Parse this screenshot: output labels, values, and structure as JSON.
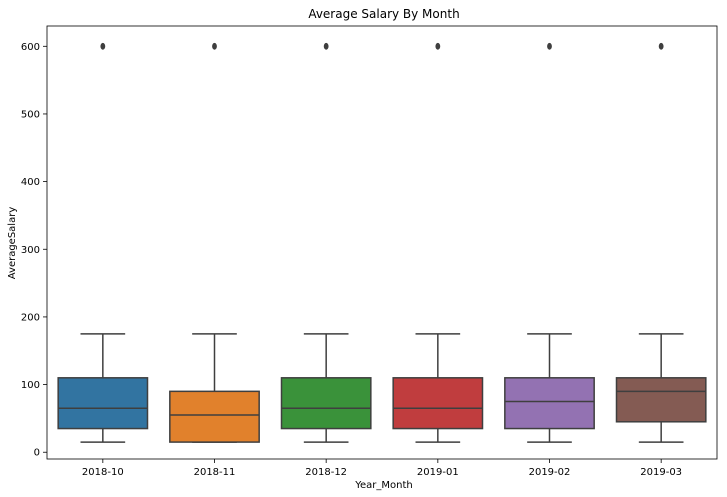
{
  "chart_data": {
    "type": "box",
    "title": "Average Salary By Month",
    "xlabel": "Year_Month",
    "ylabel": "AverageSalary",
    "ylim": [
      -10,
      630
    ],
    "yticks": [
      0,
      100,
      200,
      300,
      400,
      500,
      600
    ],
    "grid": false,
    "legend": "none",
    "categories": [
      "2018-10",
      "2018-11",
      "2018-12",
      "2019-01",
      "2019-02",
      "2019-03"
    ],
    "boxes": [
      {
        "category": "2018-10",
        "whisker_low": 15,
        "q1": 35,
        "median": 65,
        "q3": 110,
        "whisker_high": 175,
        "outliers": [
          600
        ],
        "color": "#3274a1"
      },
      {
        "category": "2018-11",
        "whisker_low": 15,
        "q1": 15,
        "median": 55,
        "q3": 90,
        "whisker_high": 175,
        "outliers": [
          600
        ],
        "color": "#e1812c"
      },
      {
        "category": "2018-12",
        "whisker_low": 15,
        "q1": 35,
        "median": 65,
        "q3": 110,
        "whisker_high": 175,
        "outliers": [
          600
        ],
        "color": "#3a923a"
      },
      {
        "category": "2019-01",
        "whisker_low": 15,
        "q1": 35,
        "median": 65,
        "q3": 110,
        "whisker_high": 175,
        "outliers": [
          600
        ],
        "color": "#c03d3e"
      },
      {
        "category": "2019-02",
        "whisker_low": 15,
        "q1": 35,
        "median": 75,
        "q3": 110,
        "whisker_high": 175,
        "outliers": [
          600
        ],
        "color": "#9372b2"
      },
      {
        "category": "2019-03",
        "whisker_low": 15,
        "q1": 45,
        "median": 90,
        "q3": 110,
        "whisker_high": 175,
        "outliers": [
          600
        ],
        "color": "#845b53"
      }
    ],
    "line_color": "#3f3f3f",
    "axis_color": "#000000"
  }
}
